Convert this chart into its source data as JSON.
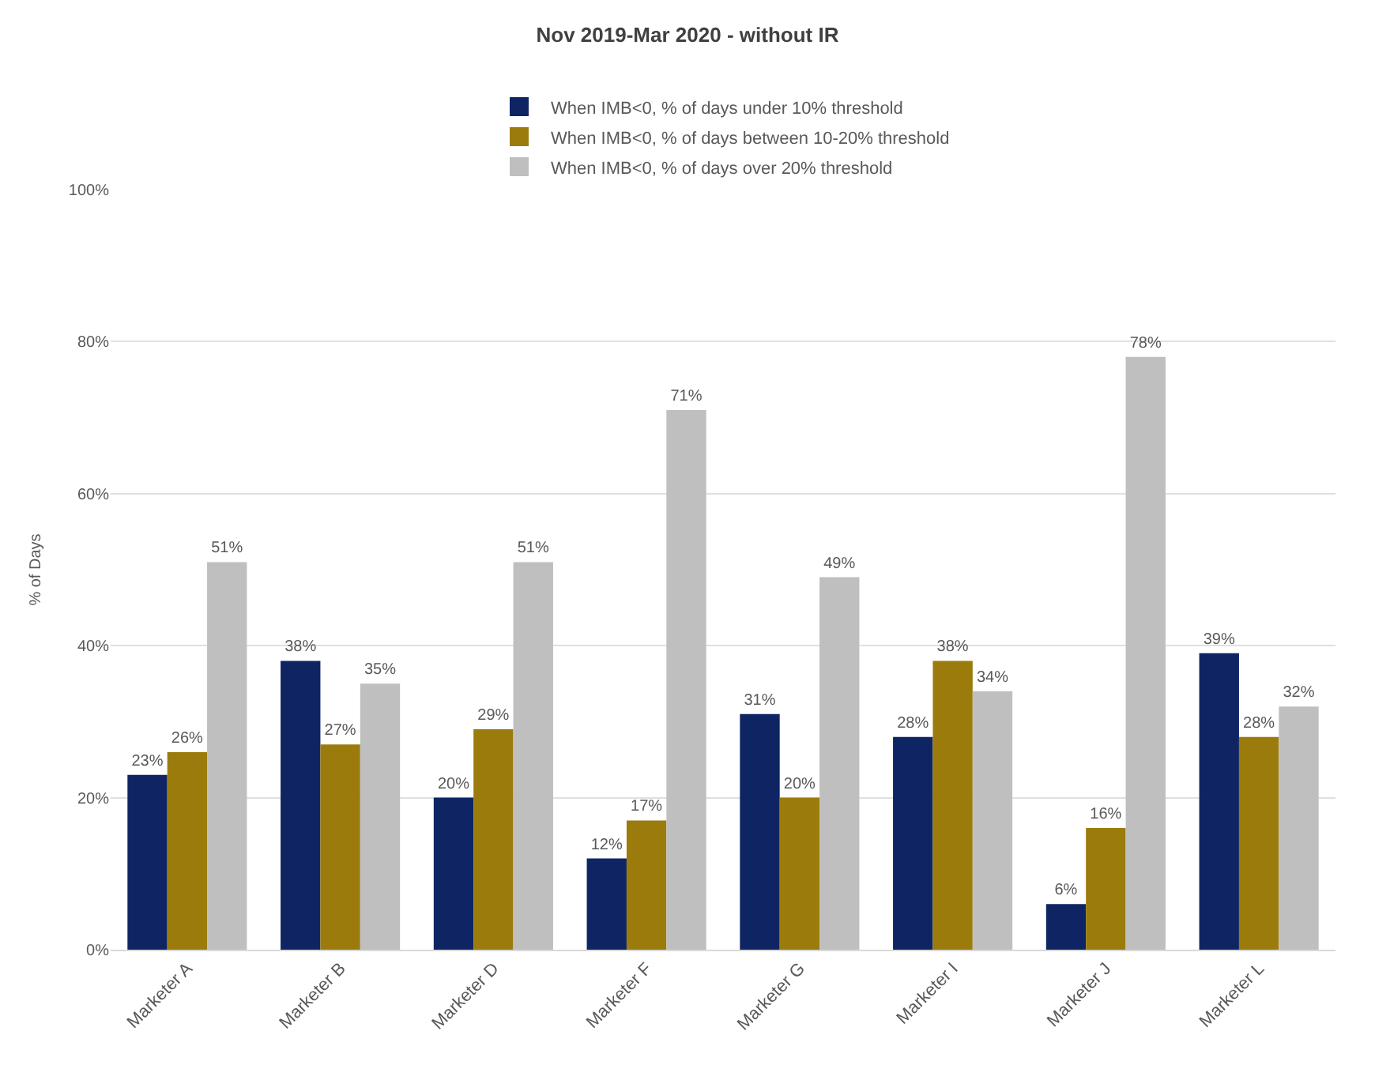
{
  "chart_data": {
    "type": "bar",
    "title": "Nov 2019-Mar 2020 - without IR",
    "ylabel": "% of Days",
    "categories": [
      "Marketer A",
      "Marketer B",
      "Marketer D",
      "Marketer F",
      "Marketer G",
      "Marketer I",
      "Marketer J",
      "Marketer L"
    ],
    "series": [
      {
        "name": "When IMB<0, % of days under 10% threshold",
        "color": "#0f2563",
        "values": [
          23,
          38,
          20,
          12,
          31,
          28,
          6,
          39
        ],
        "value_labels": [
          "23%",
          "38%",
          "20%",
          "12%",
          "31%",
          "28%",
          "6%",
          "39%"
        ]
      },
      {
        "name": "When IMB<0, % of days between 10-20% threshold",
        "color": "#9b7b0b",
        "values": [
          26,
          27,
          29,
          17,
          20,
          38,
          16,
          28
        ],
        "value_labels": [
          "26%",
          "27%",
          "29%",
          "17%",
          "20%",
          "38%",
          "16%",
          "28%"
        ]
      },
      {
        "name": "When IMB<0, % of days over 20% threshold",
        "color": "#bfbfbf",
        "values": [
          51,
          35,
          51,
          71,
          49,
          34,
          78,
          32
        ],
        "value_labels": [
          "51%",
          "35%",
          "51%",
          "71%",
          "49%",
          "34%",
          "78%",
          "32%"
        ]
      }
    ],
    "ylim": [
      0,
      100
    ],
    "yticks": [
      {
        "value": 0,
        "label": "0%"
      },
      {
        "value": 20,
        "label": "20%"
      },
      {
        "value": 40,
        "label": "40%"
      },
      {
        "value": 60,
        "label": "60%"
      },
      {
        "value": 80,
        "label": "80%"
      },
      {
        "value": 100,
        "label": "100%"
      }
    ],
    "grid": "y",
    "legend": "top"
  }
}
